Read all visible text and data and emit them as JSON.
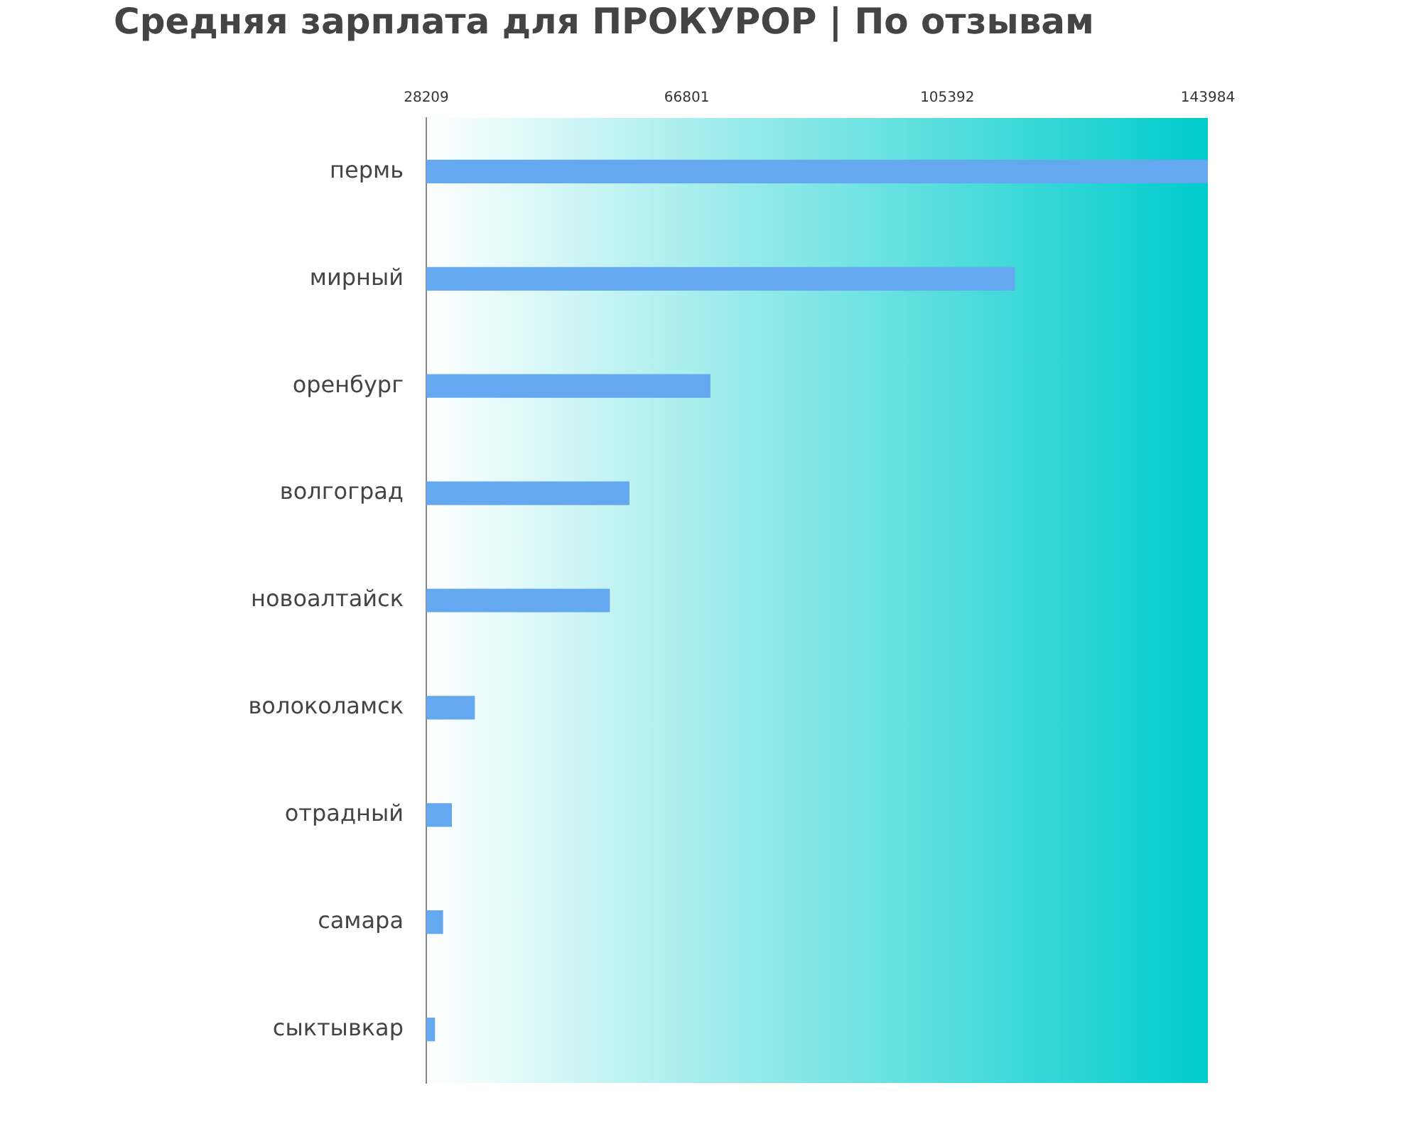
{
  "chart_data": {
    "type": "bar",
    "orientation": "horizontal",
    "title": "Средняя зарплата для ПРОКУРОР | По отзывам",
    "categories": [
      "пермь",
      "мирный",
      "оренбург",
      "волгоград",
      "новоалтайск",
      "волоколамск",
      "отрадный",
      "самара",
      "сыктывкар"
    ],
    "values": [
      143984,
      115400,
      70300,
      58300,
      55400,
      35400,
      32000,
      30700,
      29500
    ],
    "color": "#64a8f0",
    "xlim": [
      28209,
      143984
    ],
    "xticks": [
      28209,
      66801,
      105392,
      143984
    ],
    "grid": false,
    "legend": false
  }
}
